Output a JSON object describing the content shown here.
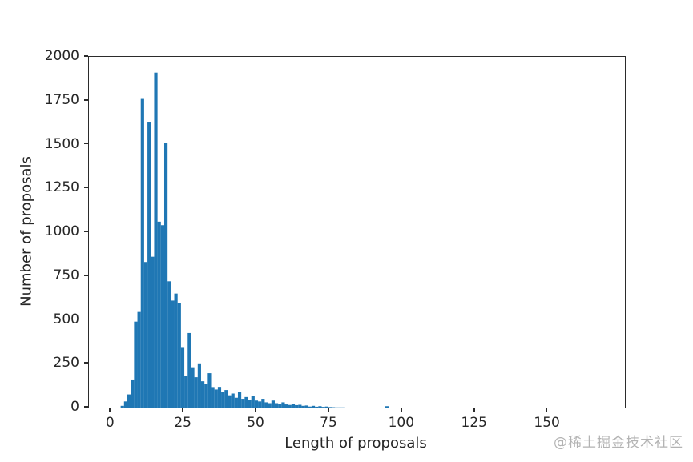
{
  "watermark": {
    "text": "@稀土掘金技术社区"
  },
  "colors": {
    "bar": "#1f77b4",
    "axis": "#2b2b2b",
    "tick_label": "#262626",
    "watermark": "#b3b3b3",
    "background": "#ffffff"
  },
  "chart_data": {
    "type": "bar",
    "subtype": "histogram",
    "title": "",
    "xlabel": "Length of proposals",
    "ylabel": "Number of proposals",
    "xlim": [
      -7.5,
      176.5
    ],
    "ylim": [
      0,
      2000
    ],
    "x_ticks": [
      0,
      25,
      50,
      75,
      100,
      125,
      150
    ],
    "y_ticks": [
      0,
      250,
      500,
      750,
      1000,
      1250,
      1500,
      1750,
      2000
    ],
    "grid": false,
    "legend_position": "none",
    "bins": {
      "start": 3.4,
      "width": 1.15
    },
    "counts": [
      10,
      35,
      75,
      160,
      490,
      545,
      1760,
      830,
      1630,
      860,
      1910,
      1060,
      1040,
      1510,
      720,
      610,
      650,
      595,
      345,
      182,
      425,
      230,
      173,
      252,
      150,
      135,
      196,
      117,
      103,
      118,
      88,
      100,
      70,
      80,
      56,
      88,
      50,
      60,
      45,
      68,
      40,
      35,
      50,
      30,
      25,
      40,
      25,
      20,
      30,
      18,
      15,
      20,
      14,
      16,
      10,
      12,
      6,
      10,
      5,
      8,
      4,
      6,
      3,
      2,
      1,
      1,
      1,
      0,
      0,
      0,
      0,
      0,
      0,
      0,
      0,
      0,
      0,
      0,
      0,
      8
    ]
  }
}
